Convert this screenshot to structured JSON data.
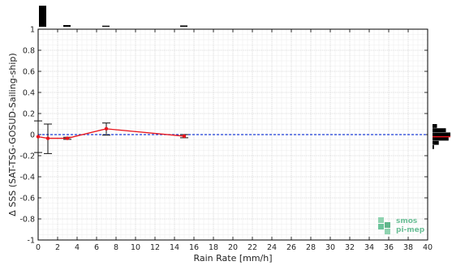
{
  "chart_data": {
    "type": "line",
    "xlabel": "Rain Rate [mm/h]",
    "ylabel": "Δ SSS (SAT-TSG-GOSUD-Sailing-ship)",
    "xlim": [
      0,
      40
    ],
    "ylim": [
      -1,
      1
    ],
    "x_ticks": [
      0,
      2,
      4,
      6,
      8,
      10,
      12,
      14,
      16,
      18,
      20,
      22,
      24,
      26,
      28,
      30,
      32,
      34,
      36,
      38,
      40
    ],
    "y_ticks": [
      -1,
      -0.8,
      -0.6,
      -0.4,
      -0.2,
      0,
      0.2,
      0.4,
      0.6,
      0.8,
      1
    ],
    "y_tick_labels": [
      "-1",
      "-0.8",
      "-0.6",
      "-0.4",
      "-0.2",
      "0",
      "0.2",
      "0.4",
      "0.6",
      "0.8",
      "1"
    ],
    "grid": true,
    "reference_line": {
      "y": 0,
      "style": "dashed",
      "color": "#1f3fd6"
    },
    "series": [
      {
        "color": "#e8141c",
        "x": [
          0,
          1,
          3,
          7,
          15
        ],
        "y": [
          -0.02,
          -0.035,
          -0.035,
          0.055,
          -0.015
        ],
        "error_low": [
          -0.17,
          -0.18,
          -0.045,
          -0.005,
          -0.03
        ],
        "error_high": [
          0.13,
          0.1,
          -0.025,
          0.11,
          0.0
        ]
      }
    ],
    "top_histogram": {
      "x": [
        0.5,
        3,
        7,
        15
      ],
      "counts": [
        1.0,
        0.08,
        0.05,
        0.06
      ]
    },
    "right_histogram": {
      "y": [
        -0.12,
        -0.08,
        -0.04,
        0.0,
        0.04,
        0.08
      ],
      "counts": [
        0.08,
        0.35,
        0.9,
        1.0,
        0.75,
        0.25
      ]
    },
    "logo": {
      "line1": "smos",
      "line2": "pi-mep"
    }
  }
}
